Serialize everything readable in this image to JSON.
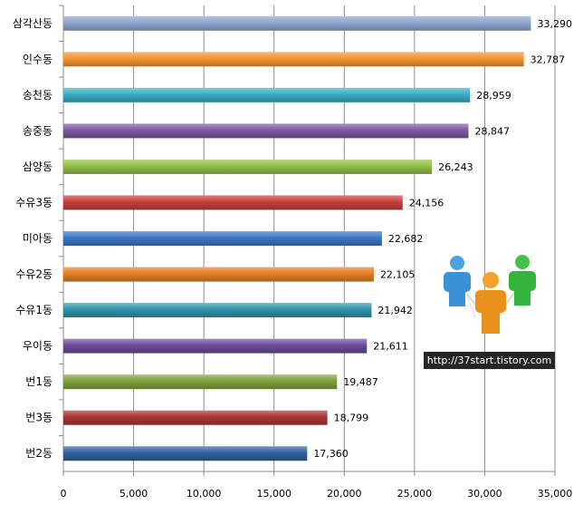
{
  "chart_data": {
    "type": "bar",
    "orientation": "horizontal",
    "categories": [
      "삼각산동",
      "인수동",
      "송천동",
      "송중동",
      "삼양동",
      "수유3동",
      "미아동",
      "수유2동",
      "수유1동",
      "우이동",
      "번1동",
      "번3동",
      "번2동"
    ],
    "values": [
      33290,
      32787,
      28959,
      28847,
      26243,
      24156,
      22682,
      22105,
      21942,
      21611,
      19487,
      18799,
      17360
    ],
    "value_labels": [
      "33,290",
      "32,787",
      "28,959",
      "28,847",
      "26,243",
      "24,156",
      "22,682",
      "22,105",
      "21,942",
      "21,611",
      "19,487",
      "18,799",
      "17,360"
    ],
    "bar_colors": [
      "#8EA5CF",
      "#F39433",
      "#3BADC4",
      "#7E5AA3",
      "#93BF46",
      "#C7403C",
      "#3D76C6",
      "#E47E22",
      "#2E93AA",
      "#6B4C9A",
      "#7CA33A",
      "#A93634",
      "#31609F"
    ],
    "xlim": [
      0,
      35000
    ],
    "xticks": [
      0,
      5000,
      10000,
      15000,
      20000,
      25000,
      30000,
      35000
    ],
    "xtick_labels": [
      "0",
      "5,000",
      "10,000",
      "15,000",
      "20,000",
      "25,000",
      "30,000",
      "35,000"
    ],
    "grid": "vertical",
    "title": "",
    "xlabel": "",
    "ylabel": ""
  },
  "watermark": {
    "text": "http://37start.tistory.com"
  }
}
